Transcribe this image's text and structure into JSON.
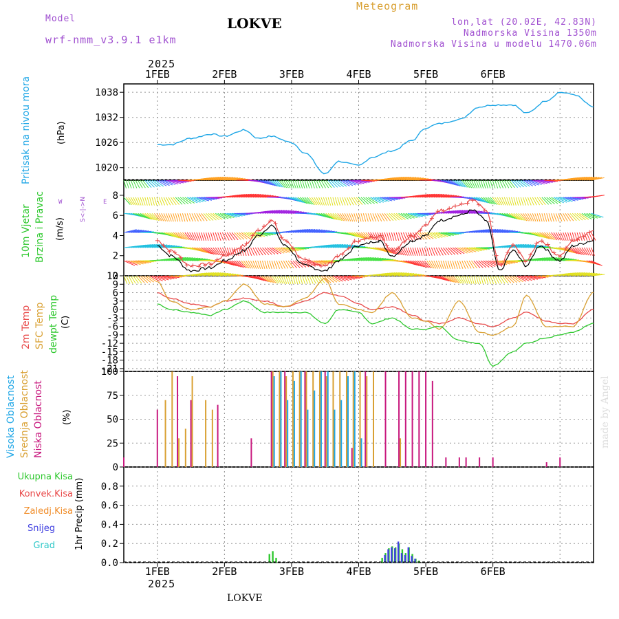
{
  "header": {
    "model_label": "Model",
    "model_name": "wrf-nmm_v3.9.1 e1km",
    "station": "LOKVE",
    "product": "Meteogram",
    "coords": "lon,lat (20.02E, 42.83N)",
    "elevation": "Nadmorska Visina 1350m",
    "model_elevation": "Nadmorska Visina u modelu 1470.06m",
    "year_top": "2025",
    "year_bottom": "2025",
    "footer_station": "LOKVE",
    "watermark": "made by Angel"
  },
  "colors": {
    "pressure": "#1ea6e6",
    "temp2m": "#e84a4a",
    "sfc": "#d9a032",
    "dew": "#2ec82e",
    "high": "#1ea6e6",
    "mid": "#d9a032",
    "low": "#c8187e",
    "wind_obs": "#e84a4a",
    "violet": "#a050d0",
    "total": "#2ec82e",
    "conv": "#e84a4a",
    "frozen": "#f08c28",
    "snow": "#4040e0",
    "graupel": "#30c8c8"
  },
  "panels": {
    "pressure": {
      "label": "Pritisak na nivou mora",
      "unit": "(hPa)"
    },
    "wind": {
      "label1": "10m Vjetar",
      "label2": "Brzina i Pravac",
      "unit": "(m/s)",
      "rose_n": "N",
      "rose_s": "S",
      "rose_w": "W",
      "rose_e": "E",
      "rose_mid": "<-|->"
    },
    "temp": {
      "label_t2": "2m Temp",
      "label_sfc": "SFC Temp",
      "label_dew": "dewpt Temp",
      "unit": "(C)"
    },
    "cloud": {
      "label_high": "Visoka Oblacnost",
      "label_mid": "Srednja Oblacnost",
      "label_low": "Niska Oblacnost",
      "unit": "(%)"
    },
    "precip": {
      "total": "Ukupna Kisa",
      "conv": "Konvek.Kisa",
      "frozen": "Zaledj.Kisa",
      "snow": "Snijeg",
      "graupel": "Grad",
      "unit": "1hr Precip (mm)"
    }
  },
  "chart_data": [
    {
      "type": "line",
      "name": "sea-level-pressure",
      "x": [
        0.0,
        0.2,
        0.5,
        0.8,
        1.0,
        1.3,
        1.5,
        1.7,
        2.0,
        2.2,
        2.5,
        2.7,
        3.0,
        3.2,
        3.5,
        3.8,
        4.0,
        4.2,
        4.5,
        4.8,
        5.0,
        5.3,
        5.5,
        5.8,
        6.0,
        6.2,
        6.5
      ],
      "y": [
        1025.5,
        1025.5,
        1027.0,
        1028.0,
        1027.5,
        1029.0,
        1027.0,
        1027.5,
        1026.0,
        1023.5,
        1018.5,
        1021.5,
        1020.5,
        1022.5,
        1024.0,
        1026.5,
        1029.5,
        1030.5,
        1031.5,
        1034.5,
        1035.0,
        1035.0,
        1033.0,
        1036.0,
        1038.0,
        1037.5,
        1034.5
      ],
      "ylim": [
        1017,
        1040
      ],
      "yticks": [
        1020,
        1026,
        1032,
        1038
      ],
      "xlim": [
        -0.5,
        6.5
      ]
    },
    {
      "type": "line",
      "name": "wind-speed",
      "x": [
        0.0,
        0.2,
        0.5,
        0.8,
        1.0,
        1.3,
        1.5,
        1.7,
        1.9,
        2.2,
        2.5,
        2.7,
        3.0,
        3.3,
        3.5,
        3.8,
        4.0,
        4.2,
        4.5,
        4.7,
        4.9,
        5.1,
        5.3,
        5.5,
        5.7,
        6.0,
        6.2,
        6.5
      ],
      "series": [
        {
          "name": "model",
          "values": [
            3.0,
            2.0,
            0.5,
            0.8,
            1.5,
            2.5,
            4.0,
            5.0,
            3.0,
            1.0,
            0.5,
            1.5,
            3.0,
            3.5,
            2.0,
            3.5,
            4.0,
            5.5,
            6.0,
            6.5,
            5.5,
            0.5,
            2.5,
            1.0,
            3.0,
            1.5,
            3.0,
            3.5
          ]
        },
        {
          "name": "gust",
          "values": [
            3.5,
            2.5,
            1.0,
            1.2,
            2.0,
            3.0,
            4.5,
            5.5,
            3.5,
            1.5,
            1.0,
            2.0,
            3.5,
            4.0,
            2.5,
            4.0,
            5.0,
            6.5,
            7.0,
            7.5,
            6.5,
            1.0,
            3.0,
            1.5,
            3.5,
            2.0,
            3.5,
            4.5
          ]
        }
      ],
      "ylim": [
        0,
        9.5
      ],
      "yticks": [
        0,
        2,
        4,
        6,
        8
      ],
      "barb_rows": [
        0,
        1.5,
        2.8,
        4.3,
        6.2,
        7.8,
        9.5
      ]
    },
    {
      "type": "line",
      "name": "temperatures",
      "x": [
        0.0,
        0.2,
        0.5,
        0.8,
        1.0,
        1.3,
        1.6,
        1.9,
        2.2,
        2.5,
        2.7,
        3.0,
        3.2,
        3.5,
        3.8,
        4.0,
        4.2,
        4.5,
        4.8,
        5.0,
        5.3,
        5.5,
        5.8,
        6.0,
        6.2,
        6.5
      ],
      "series": [
        {
          "name": "2m Temp",
          "values": [
            6,
            4,
            2,
            1,
            3,
            4,
            3,
            1,
            3,
            6,
            5,
            2,
            0,
            1,
            -2,
            -4,
            -5,
            -3,
            -5,
            -6,
            -3,
            -1,
            -4,
            -5,
            -5,
            0
          ]
        },
        {
          "name": "SFC Temp",
          "values": [
            10,
            3,
            0,
            1,
            3,
            9,
            2,
            1,
            4,
            11,
            2,
            0,
            -1,
            6,
            -3,
            -4,
            -7,
            3,
            -8,
            -9,
            -6,
            5,
            -6,
            -6,
            -6,
            6
          ]
        },
        {
          "name": "dewpt Temp",
          "values": [
            2,
            0,
            -1,
            -2,
            0,
            3,
            -1,
            -1,
            -1,
            -5,
            0,
            -1,
            -5,
            -3,
            -7,
            -7,
            -6,
            -11,
            -12,
            -20,
            -15,
            -12,
            -10,
            -9,
            -8,
            -5
          ]
        }
      ],
      "ylim": [
        -22,
        12
      ],
      "yticks": [
        -21,
        -18,
        -15,
        -12,
        -9,
        -6,
        -3,
        0,
        3,
        6,
        9,
        12
      ]
    },
    {
      "type": "bar",
      "name": "cloud-cover",
      "ylim": [
        0,
        100
      ],
      "yticks": [
        0,
        25,
        50,
        75,
        100
      ],
      "series": [
        {
          "name": "Niska Oblacnost",
          "x": [
            -0.5,
            0.0,
            0.3,
            0.5,
            0.9,
            1.4,
            1.7,
            1.9,
            2.2,
            2.5,
            2.9,
            3.1,
            3.4,
            3.6,
            3.7,
            3.8,
            3.9,
            4.0,
            4.1,
            4.3,
            4.5,
            4.6,
            4.8,
            5.0,
            5.8,
            6.0
          ],
          "values": [
            10,
            60,
            95,
            70,
            65,
            30,
            100,
            100,
            100,
            100,
            20,
            100,
            100,
            100,
            100,
            100,
            100,
            100,
            90,
            10,
            10,
            10,
            10,
            10,
            5,
            10
          ]
        },
        {
          "name": "Srednja Oblacnost",
          "x": [
            0.1,
            0.2,
            0.3,
            0.4,
            0.5,
            0.7,
            0.8,
            1.7,
            1.8,
            1.9,
            2.0,
            2.1,
            2.2,
            2.3,
            2.4,
            2.5,
            2.6,
            2.7,
            2.8,
            2.9,
            3.0,
            3.1,
            3.2,
            3.6
          ],
          "values": [
            70,
            100,
            30,
            40,
            95,
            70,
            60,
            100,
            100,
            95,
            100,
            100,
            100,
            100,
            100,
            95,
            100,
            100,
            100,
            100,
            100,
            95,
            100,
            30
          ]
        },
        {
          "name": "Visoka Oblacnost",
          "x": [
            1.7,
            1.8,
            1.9,
            2.0,
            2.1,
            2.2,
            2.3,
            2.4,
            2.5,
            2.6,
            2.7,
            2.8,
            2.9,
            3.0
          ],
          "values": [
            95,
            100,
            70,
            90,
            100,
            60,
            80,
            100,
            100,
            60,
            70,
            95,
            100,
            30
          ]
        }
      ]
    },
    {
      "type": "bar",
      "name": "precipitation",
      "ylim": [
        0,
        1.0
      ],
      "yticks": [
        0,
        0.2,
        0.4,
        0.6,
        0.8
      ],
      "series": [
        {
          "name": "Ukupna Kisa",
          "x": [
            1.67,
            1.72,
            1.77,
            3.35,
            3.4,
            3.45,
            3.5,
            3.55,
            3.6,
            3.65,
            3.7,
            3.75,
            3.8,
            3.85,
            3.9
          ],
          "values": [
            0.09,
            0.12,
            0.05,
            0.05,
            0.1,
            0.15,
            0.17,
            0.16,
            0.2,
            0.14,
            0.1,
            0.16,
            0.09,
            0.04,
            0.02
          ]
        },
        {
          "name": "Snijeg",
          "x": [
            3.37,
            3.42,
            3.47,
            3.52,
            3.57,
            3.62,
            3.67,
            3.72,
            3.77,
            3.82
          ],
          "values": [
            0.08,
            0.14,
            0.16,
            0.15,
            0.22,
            0.1,
            0.08,
            0.16,
            0.07,
            0.04
          ]
        }
      ]
    }
  ],
  "axes": {
    "days": [
      "1FEB",
      "2FEB",
      "3FEB",
      "4FEB",
      "5FEB",
      "6FEB"
    ]
  }
}
